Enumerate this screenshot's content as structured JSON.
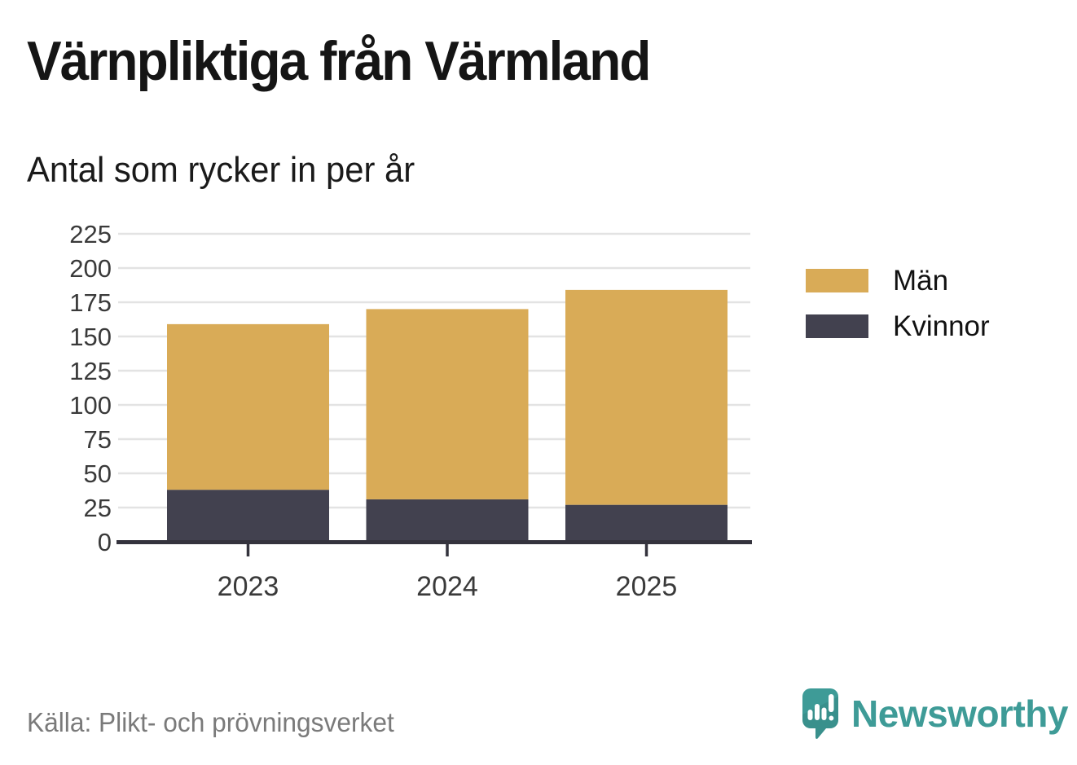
{
  "title": "Värnpliktiga från Värmland",
  "subtitle": "Antal som rycker in per år",
  "source": "Källa: Plikt- och prövningsverket",
  "branding": {
    "name": "Newsworthy",
    "teal": "#3E9B97",
    "icon": "newsworthy-speech-bubble-chart-icon"
  },
  "legend": {
    "items": [
      {
        "label": "Män",
        "color": "#D9AB57"
      },
      {
        "label": "Kvinnor",
        "color": "#42414F"
      }
    ]
  },
  "chart_data": {
    "type": "bar",
    "stacked": true,
    "title": "Värnpliktiga från Värmland",
    "subtitle": "Antal som rycker in per år",
    "categories": [
      "2023",
      "2024",
      "2025"
    ],
    "series": [
      {
        "name": "Kvinnor",
        "color": "#42414F",
        "values": [
          38,
          31,
          27
        ]
      },
      {
        "name": "Män",
        "color": "#D9AB57",
        "values": [
          121,
          139,
          157
        ]
      }
    ],
    "totals": [
      159,
      170,
      184
    ],
    "xlabel": "",
    "ylabel": "",
    "ylim": [
      0,
      225
    ],
    "yticks": [
      0,
      25,
      50,
      75,
      100,
      125,
      150,
      175,
      200,
      225
    ],
    "grid": true,
    "legend_position": "right",
    "legend_order": [
      "Män",
      "Kvinnor"
    ],
    "colors": {
      "grid": "#E3E3E3",
      "axis": "#34333D",
      "tick_label": "#3A3A3A"
    }
  }
}
